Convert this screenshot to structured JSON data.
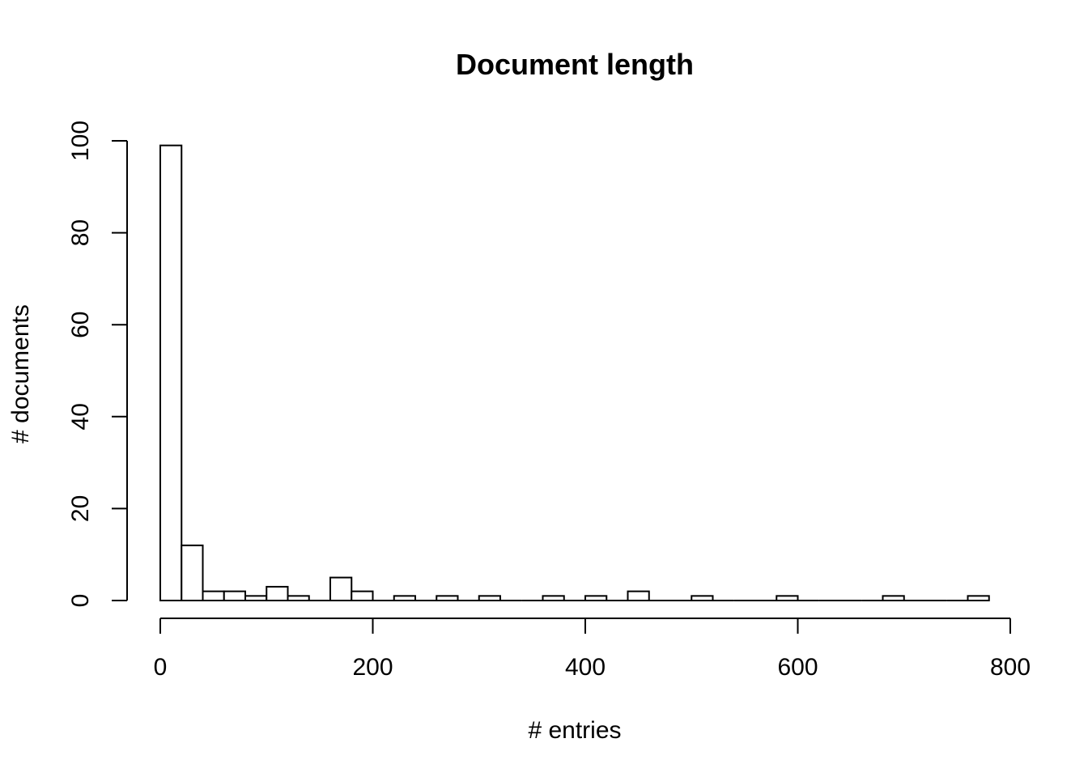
{
  "chart_data": {
    "type": "bar",
    "title": "Document length",
    "xlabel": "# entries",
    "ylabel": "# documents",
    "xlim": [
      0,
      800
    ],
    "ylim": [
      0,
      100
    ],
    "x_ticks": [
      0,
      200,
      400,
      600,
      800
    ],
    "y_ticks": [
      0,
      20,
      40,
      60,
      80,
      100
    ],
    "grid": false,
    "legend": "none",
    "bin_width": 20,
    "bins": [
      {
        "x0": 0,
        "x1": 20,
        "count": 99
      },
      {
        "x0": 20,
        "x1": 40,
        "count": 12
      },
      {
        "x0": 40,
        "x1": 60,
        "count": 2
      },
      {
        "x0": 60,
        "x1": 80,
        "count": 2
      },
      {
        "x0": 80,
        "x1": 100,
        "count": 1
      },
      {
        "x0": 100,
        "x1": 120,
        "count": 3
      },
      {
        "x0": 120,
        "x1": 140,
        "count": 1
      },
      {
        "x0": 140,
        "x1": 160,
        "count": 0
      },
      {
        "x0": 160,
        "x1": 180,
        "count": 5
      },
      {
        "x0": 180,
        "x1": 200,
        "count": 2
      },
      {
        "x0": 200,
        "x1": 220,
        "count": 0
      },
      {
        "x0": 220,
        "x1": 240,
        "count": 1
      },
      {
        "x0": 240,
        "x1": 260,
        "count": 0
      },
      {
        "x0": 260,
        "x1": 280,
        "count": 1
      },
      {
        "x0": 280,
        "x1": 300,
        "count": 0
      },
      {
        "x0": 300,
        "x1": 320,
        "count": 1
      },
      {
        "x0": 320,
        "x1": 340,
        "count": 0
      },
      {
        "x0": 340,
        "x1": 360,
        "count": 0
      },
      {
        "x0": 360,
        "x1": 380,
        "count": 1
      },
      {
        "x0": 380,
        "x1": 400,
        "count": 0
      },
      {
        "x0": 400,
        "x1": 420,
        "count": 1
      },
      {
        "x0": 420,
        "x1": 440,
        "count": 0
      },
      {
        "x0": 440,
        "x1": 460,
        "count": 2
      },
      {
        "x0": 460,
        "x1": 480,
        "count": 0
      },
      {
        "x0": 480,
        "x1": 500,
        "count": 0
      },
      {
        "x0": 500,
        "x1": 520,
        "count": 1
      },
      {
        "x0": 520,
        "x1": 540,
        "count": 0
      },
      {
        "x0": 540,
        "x1": 560,
        "count": 0
      },
      {
        "x0": 560,
        "x1": 580,
        "count": 0
      },
      {
        "x0": 580,
        "x1": 600,
        "count": 1
      },
      {
        "x0": 600,
        "x1": 620,
        "count": 0
      },
      {
        "x0": 620,
        "x1": 640,
        "count": 0
      },
      {
        "x0": 640,
        "x1": 660,
        "count": 0
      },
      {
        "x0": 660,
        "x1": 680,
        "count": 0
      },
      {
        "x0": 680,
        "x1": 700,
        "count": 1
      },
      {
        "x0": 700,
        "x1": 720,
        "count": 0
      },
      {
        "x0": 720,
        "x1": 740,
        "count": 0
      },
      {
        "x0": 740,
        "x1": 760,
        "count": 0
      },
      {
        "x0": 760,
        "x1": 780,
        "count": 1
      }
    ],
    "colors": {
      "bar_fill": "#ffffff",
      "bar_stroke": "#000000",
      "axis": "#000000"
    }
  }
}
